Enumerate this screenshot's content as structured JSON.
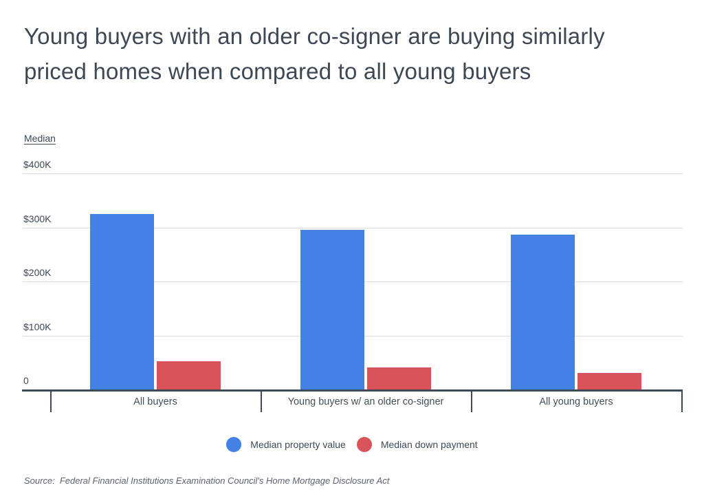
{
  "page": {
    "title": "Young buyers with an older co-signer are buying similarly priced homes when compared to all young buyers",
    "source_prefix": "Source:",
    "source_text": "Federal Financial Institutions Examination Council's Home Mortgage Disclosure Act"
  },
  "colors": {
    "series_blue": "#4382e4",
    "series_red": "#d9545a",
    "title_text": "#3d4854",
    "axis_line": "#3e4a57",
    "gridline": "#dcdcdc",
    "label_text": "#3f4956"
  },
  "chart_data": {
    "type": "bar",
    "title": "Young buyers with an older co-signer are buying similarly priced homes when compared to all young buyers",
    "xlabel": "",
    "ylabel": "Median",
    "ylim": [
      0,
      400000
    ],
    "grid": true,
    "legend_position": "bottom",
    "yticks": [
      {
        "value": 0,
        "label": "0"
      },
      {
        "value": 100000,
        "label": "$100K"
      },
      {
        "value": 200000,
        "label": "$200K"
      },
      {
        "value": 300000,
        "label": "$300K"
      },
      {
        "value": 400000,
        "label": "$400K"
      }
    ],
    "categories": [
      "All buyers",
      "Young buyers w/ an older co-signer",
      "All young buyers"
    ],
    "series": [
      {
        "name": "Median property value",
        "color": "#4382e4",
        "values": [
          325000,
          296000,
          287000
        ]
      },
      {
        "name": "Median down payment",
        "color": "#d9545a",
        "values": [
          52000,
          41000,
          31000
        ]
      }
    ]
  }
}
